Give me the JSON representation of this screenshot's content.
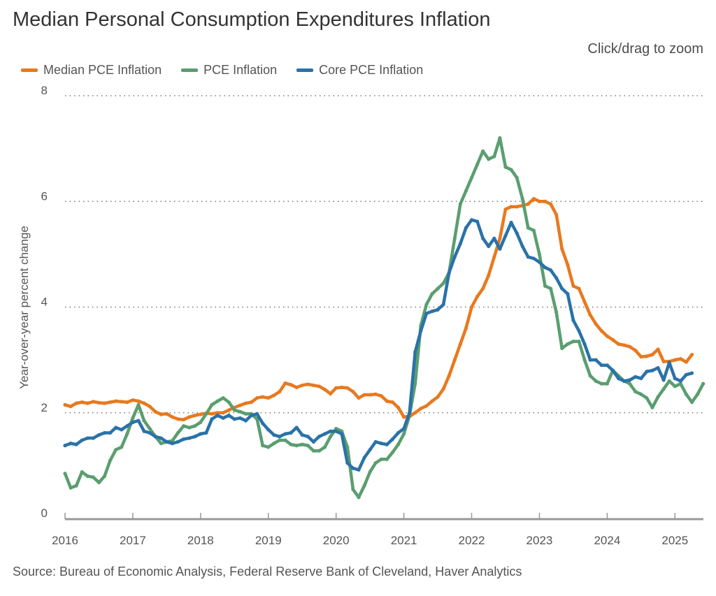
{
  "title": "Median Personal Consumption Expenditures Inflation",
  "zoom_hint": "Click/drag to zoom",
  "source": "Source: Bureau of Economic Analysis, Federal Reserve Bank of Cleveland, Haver Analytics",
  "legend": [
    {
      "label": "Median PCE Inflation",
      "color": "#e8791f"
    },
    {
      "label": "PCE Inflation",
      "color": "#5a9e6f"
    },
    {
      "label": "Core PCE Inflation",
      "color": "#2a72a8"
    }
  ],
  "chart_data": {
    "type": "line",
    "title": "Median Personal Consumption Expenditures Inflation",
    "xlabel": "",
    "ylabel": "Year-over-year percent change",
    "ylim": [
      0,
      8
    ],
    "yticks": [
      0,
      2,
      4,
      6,
      8
    ],
    "xlim": [
      2016.0,
      2025.42
    ],
    "xticks": [
      2016,
      2017,
      2018,
      2019,
      2020,
      2021,
      2022,
      2023,
      2024,
      2025
    ],
    "grid": "horizontal-dotted",
    "legend_position": "top-left",
    "x_start": "2016-01",
    "frequency": "monthly",
    "series": [
      {
        "name": "Median PCE Inflation",
        "color": "#e8791f",
        "values": [
          2.15,
          2.12,
          2.18,
          2.2,
          2.18,
          2.21,
          2.19,
          2.18,
          2.2,
          2.22,
          2.21,
          2.2,
          2.24,
          2.22,
          2.18,
          2.12,
          2.02,
          1.97,
          1.98,
          1.92,
          1.88,
          1.87,
          1.92,
          1.95,
          1.97,
          1.99,
          1.98,
          2.0,
          2.0,
          2.05,
          2.1,
          2.14,
          2.18,
          2.2,
          2.28,
          2.3,
          2.28,
          2.33,
          2.4,
          2.56,
          2.53,
          2.48,
          2.52,
          2.54,
          2.52,
          2.5,
          2.44,
          2.36,
          2.47,
          2.48,
          2.47,
          2.4,
          2.28,
          2.34,
          2.34,
          2.35,
          2.32,
          2.22,
          2.2,
          2.1,
          1.92,
          1.93,
          2.0,
          2.08,
          2.13,
          2.22,
          2.3,
          2.45,
          2.7,
          3.0,
          3.3,
          3.6,
          4.0,
          4.2,
          4.35,
          4.6,
          4.95,
          5.3,
          5.85,
          5.9,
          5.9,
          5.92,
          5.95,
          6.05,
          6.0,
          6.0,
          5.95,
          5.75,
          5.1,
          4.8,
          4.4,
          4.35,
          4.1,
          3.85,
          3.68,
          3.55,
          3.45,
          3.38,
          3.3,
          3.28,
          3.25,
          3.18,
          3.06,
          3.07,
          3.1,
          3.2,
          2.97,
          2.97,
          3.0,
          3.02,
          2.96,
          3.1
        ]
      },
      {
        "name": "PCE Inflation",
        "color": "#5a9e6f",
        "values": [
          0.85,
          0.58,
          0.62,
          0.88,
          0.8,
          0.78,
          0.68,
          0.8,
          1.1,
          1.3,
          1.35,
          1.6,
          1.9,
          2.15,
          1.85,
          1.7,
          1.55,
          1.42,
          1.45,
          1.47,
          1.62,
          1.75,
          1.72,
          1.75,
          1.82,
          1.98,
          2.15,
          2.22,
          2.28,
          2.2,
          2.05,
          2.02,
          1.98,
          1.98,
          1.88,
          1.38,
          1.35,
          1.42,
          1.48,
          1.48,
          1.4,
          1.38,
          1.4,
          1.38,
          1.28,
          1.28,
          1.35,
          1.55,
          1.7,
          1.65,
          1.35,
          0.55,
          0.4,
          0.62,
          0.88,
          1.05,
          1.12,
          1.12,
          1.25,
          1.4,
          1.6,
          1.95,
          2.55,
          3.65,
          4.05,
          4.25,
          4.35,
          4.45,
          4.65,
          5.3,
          5.95,
          6.2,
          6.45,
          6.7,
          6.95,
          6.8,
          6.85,
          7.2,
          6.65,
          6.6,
          6.45,
          6.05,
          5.5,
          5.45,
          5.0,
          4.4,
          4.35,
          3.9,
          3.22,
          3.3,
          3.35,
          3.35,
          3.0,
          2.7,
          2.6,
          2.55,
          2.55,
          2.8,
          2.7,
          2.6,
          2.55,
          2.4,
          2.35,
          2.28,
          2.1,
          2.3,
          2.45,
          2.6,
          2.5,
          2.55,
          2.35,
          2.2,
          2.35,
          2.55
        ]
      },
      {
        "name": "Core PCE Inflation",
        "color": "#2a72a8",
        "values": [
          1.38,
          1.42,
          1.4,
          1.48,
          1.52,
          1.52,
          1.58,
          1.62,
          1.62,
          1.72,
          1.68,
          1.75,
          1.82,
          1.85,
          1.65,
          1.62,
          1.55,
          1.52,
          1.45,
          1.42,
          1.45,
          1.5,
          1.52,
          1.55,
          1.6,
          1.62,
          1.88,
          1.95,
          1.9,
          1.95,
          1.88,
          1.9,
          1.85,
          1.95,
          1.98,
          1.8,
          1.68,
          1.58,
          1.55,
          1.6,
          1.62,
          1.72,
          1.58,
          1.55,
          1.45,
          1.55,
          1.6,
          1.65,
          1.65,
          1.6,
          1.05,
          0.95,
          0.92,
          1.15,
          1.3,
          1.45,
          1.42,
          1.4,
          1.5,
          1.62,
          1.7,
          2.0,
          3.15,
          3.55,
          3.88,
          3.92,
          3.95,
          4.05,
          4.65,
          4.95,
          5.2,
          5.5,
          5.65,
          5.62,
          5.3,
          5.15,
          5.3,
          5.1,
          5.35,
          5.6,
          5.4,
          5.15,
          4.95,
          4.92,
          4.85,
          4.75,
          4.7,
          4.55,
          4.35,
          4.25,
          3.75,
          3.55,
          3.3,
          3.0,
          3.0,
          2.9,
          2.9,
          2.8,
          2.65,
          2.6,
          2.62,
          2.68,
          2.65,
          2.78,
          2.8,
          2.85,
          2.62,
          2.95,
          2.65,
          2.6,
          2.72,
          2.75
        ]
      }
    ]
  }
}
